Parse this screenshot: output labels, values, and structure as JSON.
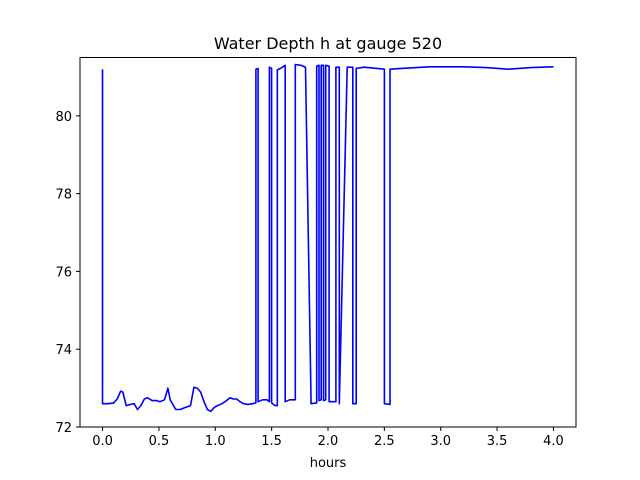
{
  "chart_data": {
    "type": "line",
    "title": "Water Depth h at gauge 520",
    "xlabel": "hours",
    "ylabel": "",
    "xlim": [
      -0.2,
      4.2
    ],
    "ylim": [
      72.0,
      81.5
    ],
    "xticks": [
      0.0,
      0.5,
      1.0,
      1.5,
      2.0,
      2.5,
      3.0,
      3.5,
      4.0
    ],
    "xtick_labels": [
      "0.0",
      "0.5",
      "1.0",
      "1.5",
      "2.0",
      "2.5",
      "3.0",
      "3.5",
      "4.0"
    ],
    "yticks": [
      72,
      74,
      76,
      78,
      80
    ],
    "ytick_labels": [
      "72",
      "74",
      "76",
      "78",
      "80"
    ],
    "grid": false,
    "line_color": "#0000ff",
    "series": [
      {
        "x": [
          0.0,
          0.0,
          0.05,
          0.1,
          0.13,
          0.16,
          0.18,
          0.21,
          0.25,
          0.28,
          0.31,
          0.34,
          0.37,
          0.4,
          0.44,
          0.48,
          0.51,
          0.55,
          0.58,
          0.6,
          0.62,
          0.65,
          0.69,
          0.73,
          0.78,
          0.81,
          0.84,
          0.87,
          0.9,
          0.93,
          0.96,
          0.99,
          1.02,
          1.06,
          1.1,
          1.13,
          1.16,
          1.19,
          1.22,
          1.25,
          1.29,
          1.33,
          1.36,
          1.36,
          1.38,
          1.38,
          1.42,
          1.46,
          1.48,
          1.48,
          1.5,
          1.5,
          1.53,
          1.55,
          1.55,
          1.58,
          1.62,
          1.62,
          1.66,
          1.71,
          1.71,
          1.76,
          1.8,
          1.85,
          1.9,
          1.9,
          1.92,
          1.92,
          1.94,
          1.94,
          1.96,
          1.96,
          1.98,
          1.98,
          2.01,
          2.01,
          2.05,
          2.07,
          2.07,
          2.1,
          2.1,
          2.17,
          2.22,
          2.22,
          2.25,
          2.25,
          2.32,
          2.5,
          2.5,
          2.55,
          2.55,
          2.65,
          2.9,
          3.2,
          3.4,
          3.6,
          3.8,
          4.0
        ],
        "y": [
          81.2,
          72.6,
          72.6,
          72.62,
          72.72,
          72.92,
          72.9,
          72.55,
          72.58,
          72.6,
          72.45,
          72.55,
          72.72,
          72.75,
          72.68,
          72.68,
          72.65,
          72.7,
          73.0,
          72.7,
          72.6,
          72.45,
          72.45,
          72.5,
          72.55,
          73.02,
          73.0,
          72.9,
          72.65,
          72.45,
          72.4,
          72.5,
          72.55,
          72.6,
          72.68,
          72.75,
          72.72,
          72.72,
          72.65,
          72.6,
          72.58,
          72.6,
          72.62,
          81.2,
          81.22,
          72.65,
          72.7,
          72.7,
          72.65,
          81.25,
          81.22,
          72.62,
          72.55,
          72.55,
          81.18,
          81.22,
          81.3,
          72.65,
          72.7,
          72.7,
          81.32,
          81.3,
          81.25,
          72.6,
          72.62,
          81.28,
          81.3,
          72.68,
          72.7,
          81.3,
          81.3,
          72.68,
          72.7,
          81.3,
          81.28,
          72.65,
          72.65,
          72.65,
          81.25,
          81.25,
          72.6,
          81.25,
          81.25,
          72.6,
          72.6,
          81.22,
          81.25,
          81.2,
          72.6,
          72.58,
          81.2,
          81.22,
          81.26,
          81.26,
          81.24,
          81.2,
          81.24,
          81.26
        ]
      }
    ]
  }
}
